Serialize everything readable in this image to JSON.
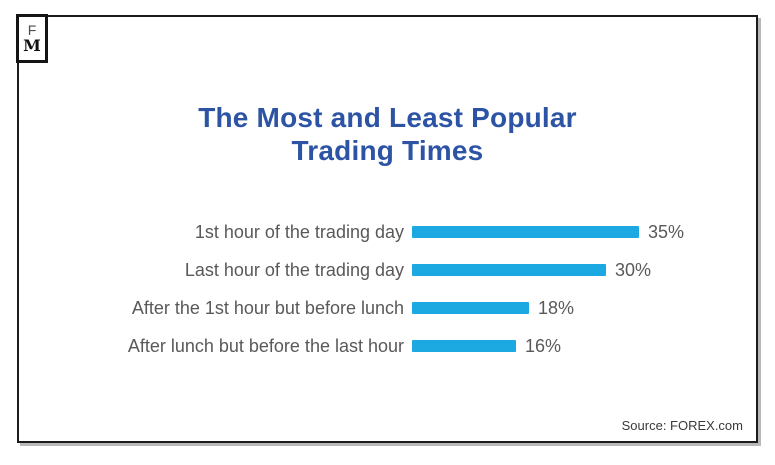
{
  "logo": {
    "top_letter": "F",
    "bottom_letter": "M"
  },
  "title": {
    "line1": "The Most and Least Popular",
    "line2": "Trading Times",
    "color": "#2D54A4"
  },
  "chart_data": {
    "type": "bar",
    "orientation": "horizontal",
    "title": "The Most and Least Popular Trading Times",
    "categories": [
      "1st hour of the trading day",
      "Last hour of the trading day",
      "After the 1st hour but before lunch",
      "After lunch but before the last hour"
    ],
    "values": [
      35,
      30,
      18,
      16
    ],
    "unit": "%",
    "value_labels": [
      "35%",
      "30%",
      "18%",
      "16%"
    ],
    "bar_color": "#1CA9E2",
    "label_color": "#595959",
    "axes_visible": false,
    "grid": false,
    "legend": false,
    "data_labels": "outside-end",
    "xlim": [
      0,
      40
    ]
  },
  "footer": {
    "source_label": "Source: FOREX.com"
  }
}
